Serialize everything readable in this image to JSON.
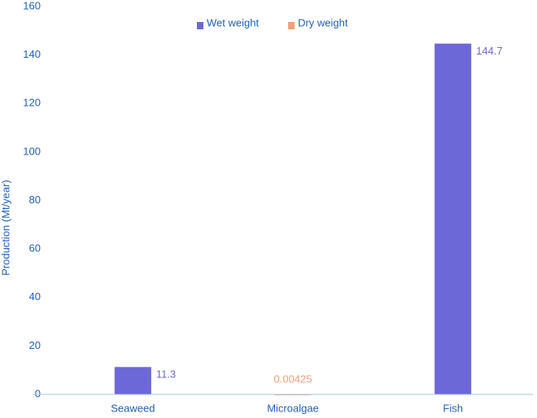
{
  "chart_data": {
    "type": "bar",
    "y_label": "Production (Mt/year)",
    "categories": [
      "Seaweed",
      "Microalgae",
      "Fish"
    ],
    "series": [
      {
        "name": "Wet weight",
        "color": "#6d68d8",
        "values": [
          11.3,
          null,
          144.7
        ]
      },
      {
        "name": "Dry weight",
        "color": "#f4a07b",
        "values": [
          null,
          0.00425,
          null
        ]
      }
    ],
    "ylim": [
      0,
      160
    ],
    "yticks": [
      0,
      20,
      40,
      60,
      80,
      100,
      120,
      140,
      160
    ],
    "grid": false,
    "legend": "top"
  }
}
